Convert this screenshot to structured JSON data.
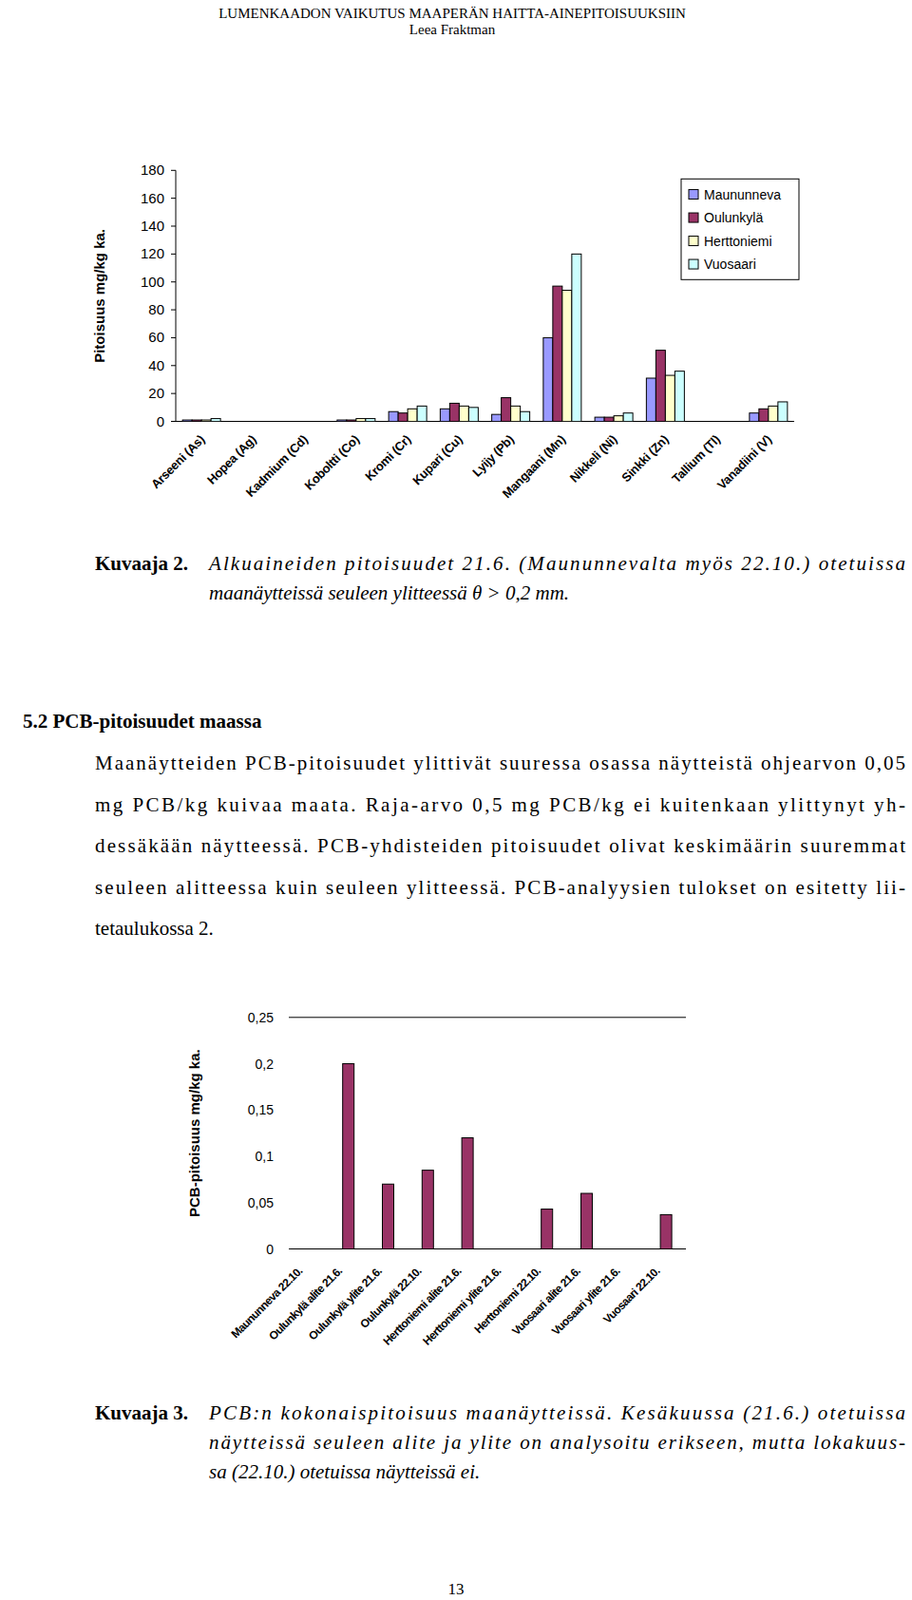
{
  "header": {
    "title": "LUMENKAADON VAIKUTUS MAAPERÄN HAITTA-AINEPITOISUUKSIIN",
    "author": "Leea Fraktman"
  },
  "chart_data": [
    {
      "type": "bar",
      "y_label": "Pitoisuus mg/kg ka.",
      "categories": [
        "Arseeni (As)",
        "Hopea (Ag)",
        "Kadmium (Cd)",
        "Koboltti (Co)",
        "Kromi (Cr)",
        "Kupari (Cu)",
        "Lyijy (Pb)",
        "Mangaani (Mn)",
        "Nikkeli (Ni)",
        "Sinkki (Zn)",
        "Tallium (Tl)",
        "Vanadiini (V)"
      ],
      "series": [
        {
          "name": "Maununneva",
          "color": "#9999ff",
          "values": [
            1,
            0,
            0,
            1,
            7,
            9,
            5,
            60,
            3,
            31,
            0,
            6
          ]
        },
        {
          "name": "Oulunkylä",
          "color": "#993366",
          "values": [
            1,
            0,
            0,
            1,
            6,
            13,
            17,
            97,
            3,
            51,
            0,
            9
          ]
        },
        {
          "name": "Herttoniemi",
          "color": "#ffffcc",
          "values": [
            1,
            0,
            0,
            2,
            9,
            11,
            11,
            94,
            4,
            33,
            0,
            11
          ]
        },
        {
          "name": "Vuosaari",
          "color": "#ccffff",
          "values": [
            2,
            0,
            0,
            2,
            11,
            10,
            7,
            120,
            6,
            36,
            0,
            14
          ]
        }
      ],
      "ylim": [
        0,
        180
      ],
      "yticks": [
        0,
        20,
        40,
        60,
        80,
        100,
        120,
        140,
        160,
        180
      ],
      "legend": "top-right",
      "grid": false
    },
    {
      "type": "bar",
      "y_label": "PCB-pitoisuus mg/kg ka.",
      "categories": [
        "Maununneva 22.10.",
        "Oulunkylä alite 21.6.",
        "Oulunkylä ylite 21.6.",
        "Oulunkylä 22.10.",
        "Herttoniemi alite 21.6.",
        "Herttoniemi ylite 21.6.",
        "Herttoniemi 22.10.",
        "Vuosaari alite 21.6.",
        "Vuosaari ylite 21.6.",
        "Vuosaari 22.10."
      ],
      "values": [
        0,
        0.2,
        0.07,
        0.085,
        0.12,
        0,
        0.043,
        0.06,
        0,
        0.037
      ],
      "color": "#993366",
      "ylim": [
        0,
        0.25
      ],
      "yticks": [
        0,
        {
          "value": 0.05,
          "label": "0,05"
        },
        {
          "value": 0.1,
          "label": "0,1"
        },
        {
          "value": 0.15,
          "label": "0,15"
        },
        {
          "value": 0.2,
          "label": "0,2"
        },
        {
          "value": 0.25,
          "label": "0,25"
        }
      ],
      "grid": false
    }
  ],
  "figures": [
    {
      "label": "Kuvaaja 2.",
      "lines": [
        "Alkuaineiden pitoisuudet 21.6. (Maununnevalta myös 22.10.) otetuissa",
        "maanäytteissä seuleen ylitteessä θ > 0,2 mm."
      ]
    },
    {
      "label": "Kuvaaja 3.",
      "lines": [
        "PCB:n kokonaispitoisuus maanäytteissä. Kesäkuussa (21.6.) otetuissa",
        "näytteissä seuleen alite ja ylite on analysoitu erikseen, mutta lokakuus-",
        "sa (22.10.) otetuissa näytteissä ei."
      ]
    }
  ],
  "section": {
    "heading": "5.2 PCB-pitoisuudet maassa",
    "lines": [
      "Maanäytteiden PCB-pitoisuudet ylittivät suuressa osassa näytteistä ohjearvon 0,05",
      "mg PCB/kg kuivaa maata. Raja-arvo 0,5 mg PCB/kg ei kuitenkaan ylittynyt yh-",
      "dessäkään näytteessä. PCB-yhdisteiden pitoisuudet olivat keskimäärin suuremmat",
      "seuleen alitteessa kuin seuleen ylitteessä. PCB-analyysien tulokset on esitetty lii-",
      "tetaulukossa 2."
    ]
  },
  "page_number": "13"
}
